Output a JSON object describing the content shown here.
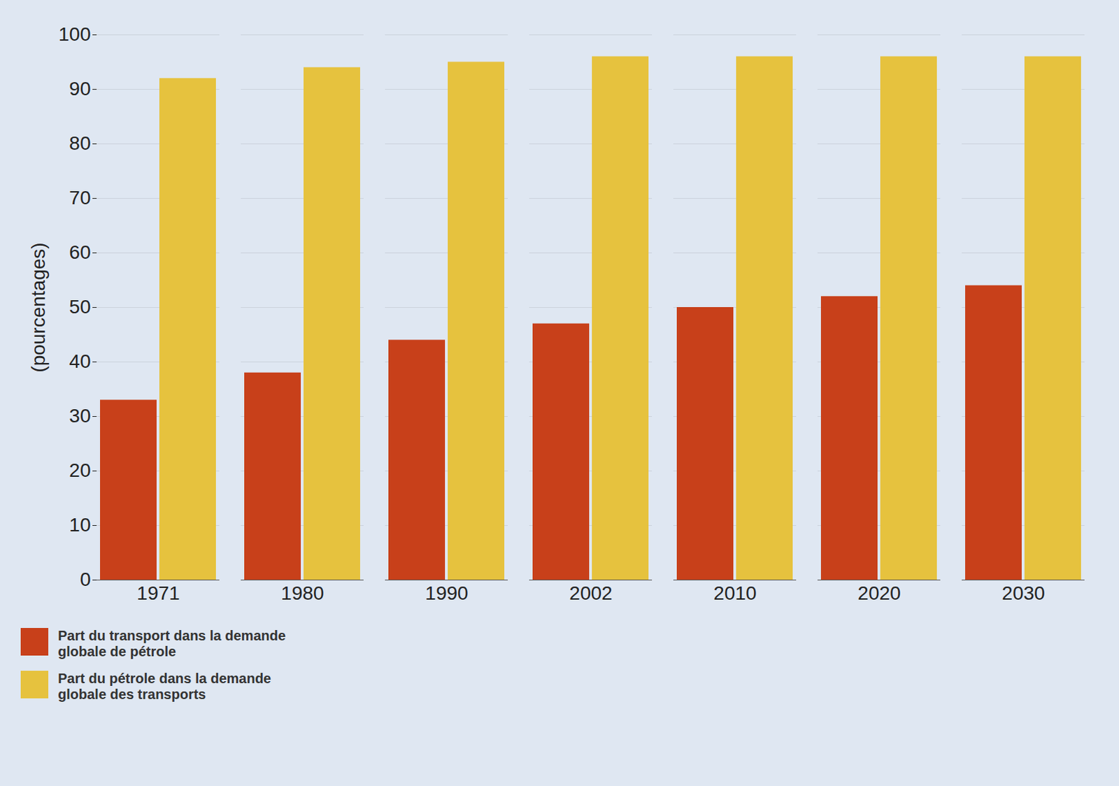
{
  "chart_data": {
    "type": "bar",
    "categories": [
      "1971",
      "1980",
      "1990",
      "2002",
      "2010",
      "2020",
      "2030"
    ],
    "series": [
      {
        "name": "Part du transport dans la demande globale de pétrole",
        "color": "#c8401a",
        "values": [
          33,
          38,
          44,
          47,
          50,
          52,
          54
        ]
      },
      {
        "name": "Part du pétrole dans la demande globale des transports",
        "color": "#e6c23e",
        "values": [
          92,
          94,
          95,
          96,
          96,
          96,
          96
        ]
      }
    ],
    "y_label": "(pourcentages)",
    "ylim": [
      0,
      100
    ],
    "yticks": [
      0,
      10,
      20,
      30,
      40,
      50,
      60,
      70,
      80,
      90,
      100
    ],
    "grid": true,
    "legend": "bottom-left"
  }
}
